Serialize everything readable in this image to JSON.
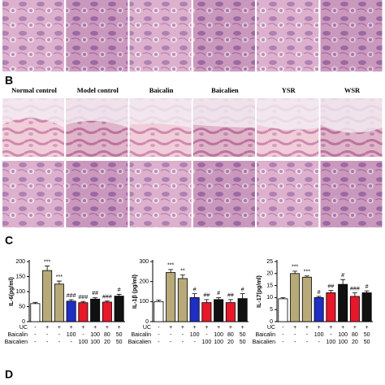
{
  "panels": [
    "B",
    "C",
    "D"
  ],
  "headers": [
    "Normal control",
    "Model control",
    "Baicalin",
    "Baicalien",
    "YSR",
    "WSR"
  ],
  "chart_data": [
    {
      "type": "bar",
      "ylabel": "IL-6(pg/ml)",
      "ylim": [
        0,
        200
      ],
      "yticks": [
        0,
        50,
        100,
        150,
        200
      ],
      "values": [
        60,
        170,
        125,
        68,
        63,
        75,
        65,
        85
      ],
      "errors": [
        4,
        15,
        10,
        5,
        4,
        5,
        4,
        6
      ],
      "colors": [
        "#ffffff",
        "#b8aa78",
        "#b8aa78",
        "#1f2fc4",
        "#e8182a",
        "#111111",
        "#e8182a",
        "#111111"
      ],
      "annotations": [
        "***",
        "***",
        "###",
        "###",
        "##",
        "###",
        "#"
      ],
      "conditions": [
        {
          "name": "UC",
          "values": [
            "-",
            "+",
            "+",
            "+",
            "+",
            "+",
            "+",
            "+"
          ]
        },
        {
          "name": "Baicalin",
          "values": [
            "-",
            "-",
            "-",
            "100",
            "-",
            "100",
            "80",
            "50"
          ]
        },
        {
          "name": "Baicalien",
          "values": [
            "-",
            "-",
            "-",
            "-",
            "100",
            "100",
            "20",
            "50"
          ]
        }
      ]
    },
    {
      "type": "bar",
      "ylabel": "IL-1β (pg/ml)",
      "ylim": [
        0,
        300
      ],
      "yticks": [
        0,
        100,
        200,
        300
      ],
      "values": [
        100,
        245,
        215,
        120,
        95,
        110,
        95,
        115
      ],
      "errors": [
        8,
        15,
        18,
        20,
        15,
        10,
        15,
        25
      ],
      "colors": [
        "#ffffff",
        "#b8aa78",
        "#b8aa78",
        "#1f2fc4",
        "#e8182a",
        "#111111",
        "#e8182a",
        "#111111"
      ],
      "annotations": [
        "***",
        "**",
        "#",
        "##",
        "#",
        "##",
        "#"
      ],
      "conditions": [
        {
          "name": "UC",
          "values": [
            "-",
            "+",
            "+",
            "+",
            "+",
            "+",
            "+",
            "+"
          ]
        },
        {
          "name": "Baicalin",
          "values": [
            "-",
            "-",
            "-",
            "100",
            "-",
            "100",
            "80",
            "50"
          ]
        },
        {
          "name": "Baicalien",
          "values": [
            "-",
            "-",
            "-",
            "-",
            "100",
            "100",
            "20",
            "50"
          ]
        }
      ]
    },
    {
      "type": "bar",
      "ylabel": "IL-17(pg/ml)",
      "ylim": [
        0,
        25
      ],
      "yticks": [
        0,
        5,
        10,
        15,
        20,
        25
      ],
      "values": [
        9.5,
        20,
        18.5,
        10,
        12,
        15.5,
        10.5,
        12
      ],
      "errors": [
        0.5,
        1,
        0.5,
        0.5,
        1,
        2,
        1.5,
        0.8
      ],
      "colors": [
        "#ffffff",
        "#b8aa78",
        "#b8aa78",
        "#1f2fc4",
        "#e8182a",
        "#111111",
        "#e8182a",
        "#111111"
      ],
      "annotations": [
        "***",
        "***",
        "#",
        "##",
        "#",
        "###",
        "#"
      ],
      "conditions": [
        {
          "name": "UC",
          "values": [
            "-",
            "+",
            "+",
            "+",
            "+",
            "+",
            "+",
            "+"
          ]
        },
        {
          "name": "Baicalin",
          "values": [
            "-",
            "-",
            "-",
            "100",
            "-",
            "100",
            "80",
            "50"
          ]
        },
        {
          "name": "Baicalien",
          "values": [
            "-",
            "-",
            "-",
            "-",
            "100",
            "100",
            "20",
            "50"
          ]
        }
      ]
    }
  ]
}
